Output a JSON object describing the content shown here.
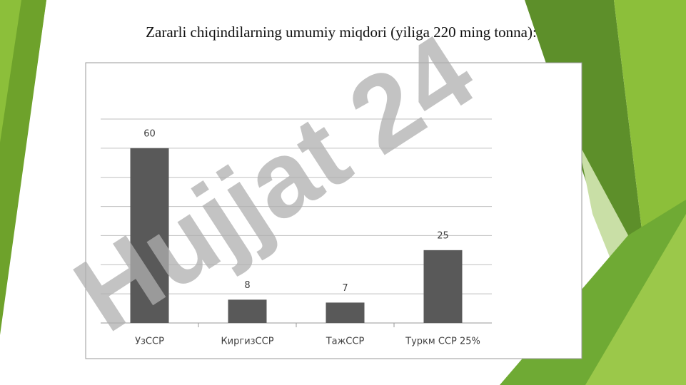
{
  "chart_data": {
    "type": "bar",
    "title": "Zararli chiqindilarning umumiy miqdori (yiliga 220 ming tonna):",
    "categories": [
      "УзССР",
      "КиргизССР",
      "ТажССР",
      "Туркм ССР 25%"
    ],
    "values": [
      60,
      8,
      7,
      25
    ],
    "color": "#595959",
    "ylim": [
      0,
      70
    ],
    "yticks": [
      0,
      10,
      20,
      30,
      40,
      50,
      60,
      70
    ],
    "grid": true
  },
  "watermark": "Hujjat 24"
}
